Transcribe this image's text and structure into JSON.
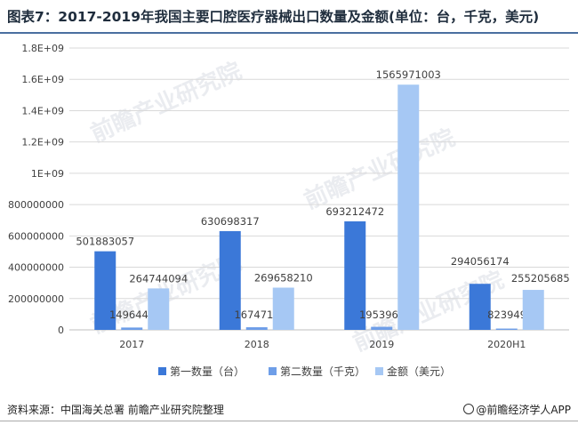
{
  "title": "图表7：2017-2019年我国主要口腔医疗器械出口数量及金额(单位：台，千克，美元)",
  "source": "资料来源：中国海关总署 前瞻产业研究院整理",
  "brand": "@前瞻经济学人APP",
  "watermark": "前瞻产业研究院",
  "colors": {
    "s1": "#3b78d8",
    "s2": "#6e9ee8",
    "s3": "#a6c8f4",
    "grid": "#d9d9d9",
    "axis": "#bfbfbf",
    "text": "#404040"
  },
  "chart_data": {
    "type": "bar",
    "categories": [
      "2017",
      "2018",
      "2019",
      "2020H1"
    ],
    "series": [
      {
        "name": "第一数量（台）",
        "values": [
          501883057,
          630698317,
          693212472,
          294056174
        ],
        "labels": [
          "501883057",
          "630698317",
          "693212472",
          "294056174"
        ]
      },
      {
        "name": "第二数量（千克）",
        "values": [
          14964425,
          16747153,
          19539661,
          8239499
        ],
        "labels": [
          "14964425",
          "16747153",
          "19539661",
          "8239499"
        ]
      },
      {
        "name": "金额（美元）",
        "values": [
          264744094,
          269658210,
          1565971003,
          255205685
        ],
        "labels": [
          "264744094",
          "269658210",
          "1565971003",
          "255205685"
        ]
      }
    ],
    "yticks": [
      0,
      200000000,
      400000000,
      600000000,
      800000000,
      1000000000,
      1200000000,
      1400000000,
      1600000000,
      1800000000
    ],
    "ytick_labels": [
      "0",
      "200000000",
      "400000000",
      "600000000",
      "800000000",
      "1E+09",
      "1.2E+09",
      "1.4E+09",
      "1.6E+09",
      "1.8E+09"
    ],
    "ylim": [
      0,
      1800000000
    ],
    "grid": true,
    "legend": "bottom"
  }
}
